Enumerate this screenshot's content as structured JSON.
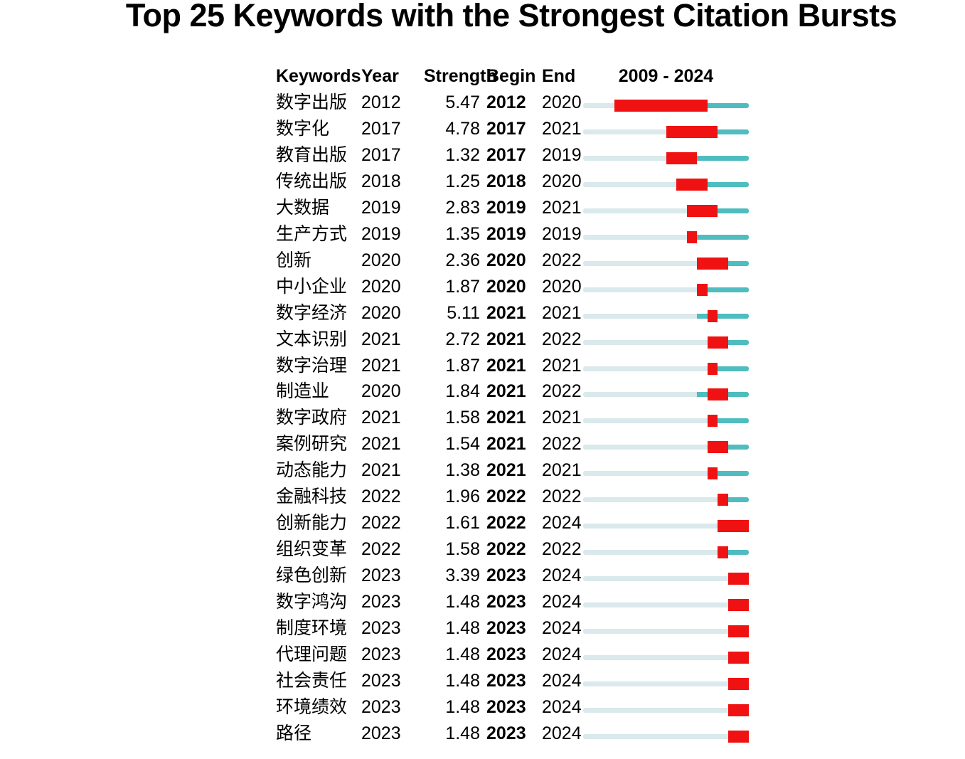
{
  "title": "Top 25 Keywords with the Strongest Citation Bursts",
  "header": {
    "keywords": "Keywords",
    "year": "Year",
    "strength": "Strength",
    "begin": "Begin",
    "end": "End",
    "range": "2009 - 2024"
  },
  "colors": {
    "burst_red": "#f01212",
    "timeline_teal": "#4fbdbf",
    "timeline_light": "#d9e9ec",
    "text": "#000000"
  },
  "chart_data": {
    "type": "table",
    "title": "Top 25 Keywords with the Strongest Citation Bursts",
    "columns": [
      "Keywords",
      "Year",
      "Strength",
      "Begin",
      "End"
    ],
    "timeline": {
      "start": 2009,
      "end": 2024,
      "label": "2009 - 2024"
    },
    "legend_note": "light segment = before first appearance, teal segment = active years, red segment = burst period",
    "rows": [
      {
        "keyword": "数字出版",
        "year": 2012,
        "strength": "5.47",
        "begin": 2012,
        "end": 2020
      },
      {
        "keyword": "数字化",
        "year": 2017,
        "strength": "4.78",
        "begin": 2017,
        "end": 2021
      },
      {
        "keyword": "教育出版",
        "year": 2017,
        "strength": "1.32",
        "begin": 2017,
        "end": 2019
      },
      {
        "keyword": "传统出版",
        "year": 2018,
        "strength": "1.25",
        "begin": 2018,
        "end": 2020
      },
      {
        "keyword": "大数据",
        "year": 2019,
        "strength": "2.83",
        "begin": 2019,
        "end": 2021
      },
      {
        "keyword": "生产方式",
        "year": 2019,
        "strength": "1.35",
        "begin": 2019,
        "end": 2019
      },
      {
        "keyword": "创新",
        "year": 2020,
        "strength": "2.36",
        "begin": 2020,
        "end": 2022
      },
      {
        "keyword": "中小企业",
        "year": 2020,
        "strength": "1.87",
        "begin": 2020,
        "end": 2020
      },
      {
        "keyword": "数字经济",
        "year": 2020,
        "strength": "5.11",
        "begin": 2021,
        "end": 2021
      },
      {
        "keyword": "文本识别",
        "year": 2021,
        "strength": "2.72",
        "begin": 2021,
        "end": 2022
      },
      {
        "keyword": "数字治理",
        "year": 2021,
        "strength": "1.87",
        "begin": 2021,
        "end": 2021
      },
      {
        "keyword": "制造业",
        "year": 2020,
        "strength": "1.84",
        "begin": 2021,
        "end": 2022
      },
      {
        "keyword": "数字政府",
        "year": 2021,
        "strength": "1.58",
        "begin": 2021,
        "end": 2021
      },
      {
        "keyword": "案例研究",
        "year": 2021,
        "strength": "1.54",
        "begin": 2021,
        "end": 2022
      },
      {
        "keyword": "动态能力",
        "year": 2021,
        "strength": "1.38",
        "begin": 2021,
        "end": 2021
      },
      {
        "keyword": "金融科技",
        "year": 2022,
        "strength": "1.96",
        "begin": 2022,
        "end": 2022
      },
      {
        "keyword": "创新能力",
        "year": 2022,
        "strength": "1.61",
        "begin": 2022,
        "end": 2024
      },
      {
        "keyword": "组织变革",
        "year": 2022,
        "strength": "1.58",
        "begin": 2022,
        "end": 2022
      },
      {
        "keyword": "绿色创新",
        "year": 2023,
        "strength": "3.39",
        "begin": 2023,
        "end": 2024
      },
      {
        "keyword": "数字鸿沟",
        "year": 2023,
        "strength": "1.48",
        "begin": 2023,
        "end": 2024
      },
      {
        "keyword": "制度环境",
        "year": 2023,
        "strength": "1.48",
        "begin": 2023,
        "end": 2024
      },
      {
        "keyword": "代理问题",
        "year": 2023,
        "strength": "1.48",
        "begin": 2023,
        "end": 2024
      },
      {
        "keyword": "社会责任",
        "year": 2023,
        "strength": "1.48",
        "begin": 2023,
        "end": 2024
      },
      {
        "keyword": "环境绩效",
        "year": 2023,
        "strength": "1.48",
        "begin": 2023,
        "end": 2024
      },
      {
        "keyword": "路径",
        "year": 2023,
        "strength": "1.48",
        "begin": 2023,
        "end": 2024
      }
    ]
  }
}
